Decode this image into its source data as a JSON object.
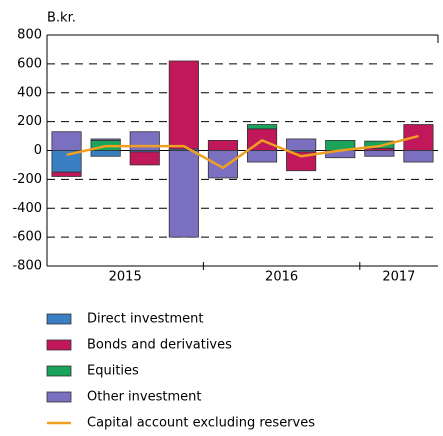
{
  "chart_data": {
    "type": "bar",
    "stacked": true,
    "y_unit_label": "B.kr.",
    "categories": [
      null,
      null,
      null,
      null,
      null,
      null,
      null,
      null,
      null,
      null
    ],
    "x_groups": [
      {
        "label": "2015",
        "span": 4
      },
      {
        "label": "2016",
        "span": 4
      },
      {
        "label": "2017",
        "span": 2
      }
    ],
    "series": [
      {
        "name": "Direct investment",
        "color": "#3a7fc1",
        "type": "bar",
        "values": [
          -150,
          -40,
          -10,
          10,
          0,
          0,
          -10,
          0,
          0,
          0
        ]
      },
      {
        "name": "Bonds and derivatives",
        "color": "#c0185a",
        "type": "bar",
        "values": [
          -30,
          0,
          -90,
          610,
          70,
          150,
          -130,
          0,
          15,
          180
        ]
      },
      {
        "name": "Equities",
        "color": "#1aa35a",
        "type": "bar",
        "values": [
          0,
          70,
          0,
          0,
          0,
          30,
          0,
          70,
          50,
          0
        ]
      },
      {
        "name": "Other investment",
        "color": "#7b6fc0",
        "type": "bar",
        "values": [
          130,
          10,
          130,
          -600,
          -190,
          -80,
          80,
          -50,
          -40,
          -80
        ]
      },
      {
        "name": "Capital account excluding reserves",
        "color": "#f0a020",
        "type": "line",
        "values": [
          -30,
          30,
          30,
          30,
          -120,
          70,
          -40,
          0,
          30,
          100
        ]
      }
    ],
    "ylim": [
      -800,
      800
    ],
    "yticks": [
      -800,
      -600,
      -400,
      -200,
      0,
      200,
      400,
      600,
      800
    ],
    "grid": true
  }
}
